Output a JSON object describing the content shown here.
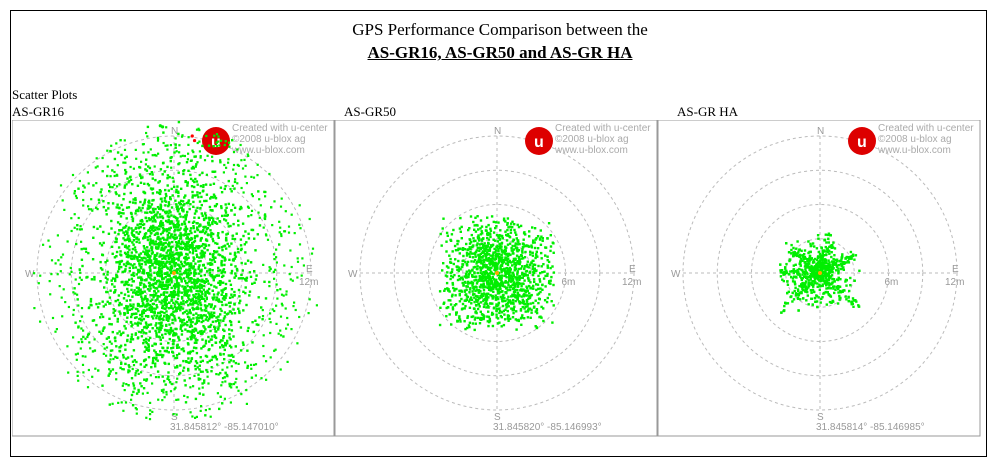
{
  "header": {
    "title_line1": "GPS Performance Comparison between the",
    "title_line2": "AS-GR16, AS-GR50 and AS-GR HA"
  },
  "section_label": "Scatter Plots",
  "colors": {
    "point": "#00ee00",
    "center": "#ffa500",
    "grid": "#bbbbbb",
    "axis_text": "#999999",
    "logo_red": "#dd0000"
  },
  "chart_data": [
    {
      "type": "scatter",
      "title": "AS-GR16",
      "rings_m": [
        6,
        12
      ],
      "labels": {
        "n": "N",
        "s": "S",
        "e": "E",
        "w": "W",
        "outer": "12m",
        "inner": ""
      },
      "coordinates": "31.845812° -85.147010°",
      "watermark": [
        "Created with u-center",
        "©2008 u-blox ag",
        "www.u-blox.com"
      ],
      "spread_m": {
        "x": 3.2,
        "y": 4.5
      },
      "extent_m": [
        -13.5,
        13.5
      ],
      "outliers_m": [
        [
          1.6,
          12.0
        ],
        [
          1.8,
          11.6
        ],
        [
          -1.0,
          12.8
        ],
        [
          -1.2,
          12.9
        ]
      ]
    },
    {
      "type": "scatter",
      "title": "AS-GR50",
      "rings_m": [
        6,
        12
      ],
      "labels": {
        "n": "N",
        "s": "S",
        "e": "E",
        "w": "W",
        "outer": "12m",
        "inner": "6m"
      },
      "coordinates": "31.845820° -85.146993°",
      "watermark": [
        "Created with u-center",
        "©2008 u-blox ag",
        "www.u-blox.com"
      ],
      "spread_m": {
        "x": 2.4,
        "y": 2.4
      },
      "extent_m": [
        -5.0,
        5.0
      ],
      "outliers_m": []
    },
    {
      "type": "scatter",
      "title": "AS-GR HA",
      "rings_m": [
        6,
        12
      ],
      "labels": {
        "n": "N",
        "s": "S",
        "e": "E",
        "w": "W",
        "outer": "12m",
        "inner": "6m"
      },
      "coordinates": "31.845814° -85.146985°",
      "watermark": [
        "Created with u-center",
        "©2008 u-blox ag",
        "www.u-blox.com"
      ],
      "spread_m": {
        "x": 1.3,
        "y": 1.3
      },
      "extent_m": [
        -3.5,
        3.5
      ],
      "arms_m": [
        [
          1.0,
          4.3
        ],
        [
          -4.0,
          0.2
        ],
        [
          -3.8,
          -3.7
        ],
        [
          3.6,
          -3.2
        ],
        [
          -2.5,
          2.0
        ],
        [
          3.0,
          1.5
        ]
      ],
      "outliers_m": []
    }
  ]
}
